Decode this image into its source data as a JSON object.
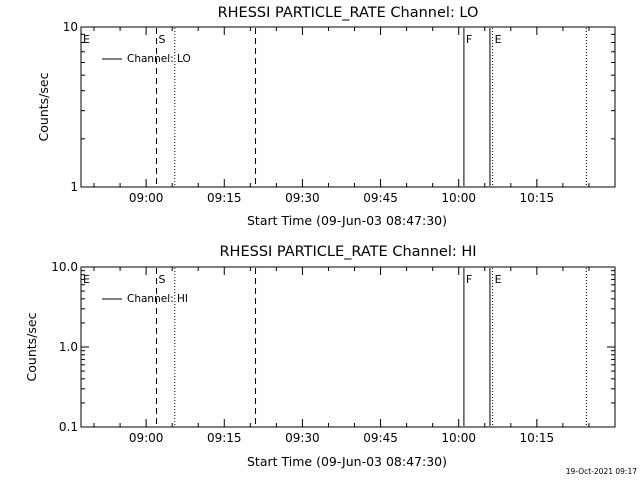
{
  "chart_data": [
    {
      "type": "line",
      "title": "RHESSI PARTICLE_RATE Channel: LO",
      "xlabel": "Start Time (09-Jun-03 08:47:30)",
      "ylabel": "Counts/sec",
      "yscale": "log",
      "ylim": [
        1,
        10
      ],
      "yticks": [
        "1",
        "10"
      ],
      "xlim": [
        "08:47:30",
        "10:30:00"
      ],
      "xticks": [
        "09:00",
        "09:15",
        "09:30",
        "09:45",
        "10:00",
        "10:15"
      ],
      "legend": {
        "position": "top-left",
        "entries": [
          "Channel: LO"
        ]
      },
      "series": [
        {
          "name": "Channel: LO",
          "x": [],
          "y": []
        }
      ],
      "markers": [
        {
          "label": "E",
          "time": "08:47:30",
          "style": "none"
        },
        {
          "label": "S",
          "time": "09:02:00",
          "style": "dashed"
        },
        {
          "label": "",
          "time": "09:05:30",
          "style": "dotted"
        },
        {
          "label": "",
          "time": "09:21:00",
          "style": "dashed"
        },
        {
          "label": "F",
          "time": "10:01:00",
          "style": "solid"
        },
        {
          "label": "",
          "time": "10:06:00",
          "style": "solid"
        },
        {
          "label": "E",
          "time": "10:06:30",
          "style": "dotted"
        },
        {
          "label": "",
          "time": "10:24:30",
          "style": "dotted"
        }
      ]
    },
    {
      "type": "line",
      "title": "RHESSI PARTICLE_RATE Channel: HI",
      "xlabel": "Start Time (09-Jun-03 08:47:30)",
      "ylabel": "Counts/sec",
      "yscale": "log",
      "ylim": [
        0.1,
        10
      ],
      "yticks": [
        "0.1",
        "1.0",
        "10.0"
      ],
      "xlim": [
        "08:47:30",
        "10:30:00"
      ],
      "xticks": [
        "09:00",
        "09:15",
        "09:30",
        "09:45",
        "10:00",
        "10:15"
      ],
      "legend": {
        "position": "top-left",
        "entries": [
          "Channel: HI"
        ]
      },
      "series": [
        {
          "name": "Channel: HI",
          "x": [],
          "y": []
        }
      ],
      "markers": [
        {
          "label": "E",
          "time": "08:47:30",
          "style": "none"
        },
        {
          "label": "S",
          "time": "09:02:00",
          "style": "dashed"
        },
        {
          "label": "",
          "time": "09:05:30",
          "style": "dotted"
        },
        {
          "label": "",
          "time": "09:21:00",
          "style": "dashed"
        },
        {
          "label": "F",
          "time": "10:01:00",
          "style": "solid"
        },
        {
          "label": "",
          "time": "10:06:00",
          "style": "solid"
        },
        {
          "label": "E",
          "time": "10:06:30",
          "style": "dotted"
        },
        {
          "label": "",
          "time": "10:24:30",
          "style": "dotted"
        }
      ]
    }
  ],
  "footer": {
    "timestamp": "19-Oct-2021 09:17"
  }
}
